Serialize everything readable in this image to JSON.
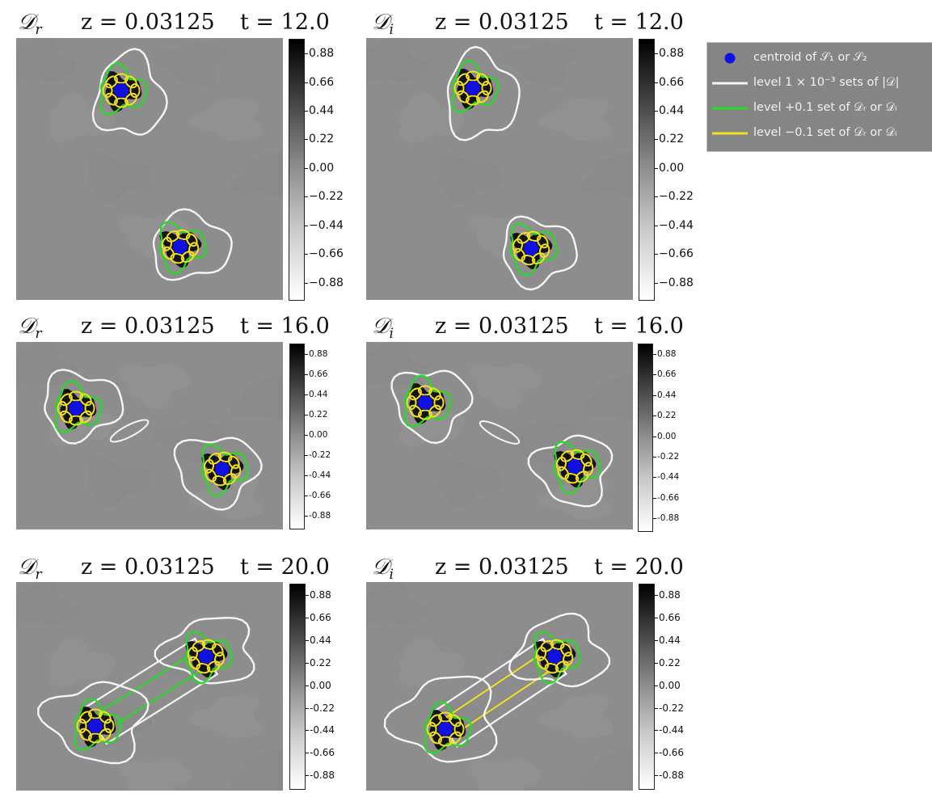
{
  "chart_data": [
    {
      "type": "heatmap",
      "field": "D_r",
      "z": "0.03125",
      "t": "12.0",
      "title_symbol": "𝒟",
      "title_sub": "r",
      "z_label": "z = 0.03125",
      "t_label": "t = 12.0",
      "colorbar_ticks": [
        "0.88",
        "0.66",
        "0.44",
        "0.22",
        "0.00",
        "−0.22",
        "−0.44",
        "−0.66",
        "−0.88"
      ],
      "colorbar_range": [
        -1,
        1
      ]
    },
    {
      "type": "heatmap",
      "field": "D_i",
      "z": "0.03125",
      "t": "12.0",
      "title_symbol": "𝒟",
      "title_sub": "i",
      "z_label": "z = 0.03125",
      "t_label": "t = 12.0",
      "colorbar_ticks": [
        "0.88",
        "0.66",
        "0.44",
        "0.22",
        "0.00",
        "−0.22",
        "−0.44",
        "−0.66",
        "−0.88"
      ],
      "colorbar_range": [
        -1,
        1
      ]
    },
    {
      "type": "heatmap",
      "field": "D_r",
      "z": "0.03125",
      "t": "16.0",
      "title_symbol": "𝒟",
      "title_sub": "r",
      "z_label": "z = 0.03125",
      "t_label": "t = 16.0",
      "colorbar_ticks": [
        "0.88",
        "0.66",
        "0.44",
        "0.22",
        "0.00",
        "-0.22",
        "-0.44",
        "-0.66",
        "-0.88"
      ],
      "colorbar_range": [
        -1,
        1
      ]
    },
    {
      "type": "heatmap",
      "field": "D_i",
      "z": "0.03125",
      "t": "16.0",
      "title_symbol": "𝒟",
      "title_sub": "i",
      "z_label": "z = 0.03125",
      "t_label": "t = 16.0",
      "colorbar_ticks": [
        "0.88",
        "0.66",
        "0.44",
        "0.22",
        "0.00",
        "-0.22",
        "-0.44",
        "-0.66",
        "-0.88"
      ],
      "colorbar_range": [
        -1,
        1
      ]
    },
    {
      "type": "heatmap",
      "field": "D_r",
      "z": "0.03125",
      "t": "20.0",
      "title_symbol": "𝒟",
      "title_sub": "r",
      "z_label": "z = 0.03125",
      "t_label": "t = 20.0",
      "colorbar_ticks": [
        "0.88",
        "0.66",
        "0.44",
        "0.22",
        "0.00",
        "-0.22",
        "-0.44",
        "-0.66",
        "-0.88"
      ],
      "colorbar_range": [
        -1,
        1
      ]
    },
    {
      "type": "heatmap",
      "field": "D_i",
      "z": "0.03125",
      "t": "20.0",
      "title_symbol": "𝒟",
      "title_sub": "i",
      "z_label": "z = 0.03125",
      "t_label": "t = 20.0",
      "colorbar_ticks": [
        "0.88",
        "0.66",
        "0.44",
        "0.22",
        "0.00",
        "-0.22",
        "-0.44",
        "-0.66",
        "-0.88"
      ],
      "colorbar_range": [
        -1,
        1
      ]
    }
  ],
  "legend": {
    "placement": "right of top row",
    "items": [
      {
        "label": "centroid of 𝒮₁ or 𝒮₂",
        "marker": "dot",
        "color": "#1010e0"
      },
      {
        "label": "level 1 × 10⁻³ sets of |𝒟|",
        "marker": "line",
        "color": "#f5f5f5"
      },
      {
        "label": "level +0.1 set of 𝒟ᵣ or 𝒟ᵢ",
        "marker": "line",
        "color": "#22dd22"
      },
      {
        "label": "level −0.1 set of 𝒟ᵣ or 𝒟ᵢ",
        "marker": "line",
        "color": "#f0e020"
      }
    ]
  },
  "colors": {
    "background_field": "#8d8d8d",
    "centroid": "#1010e0",
    "white_contour": "#f5f5f5",
    "green_contour": "#22dd22",
    "yellow_contour": "#f0e020"
  }
}
